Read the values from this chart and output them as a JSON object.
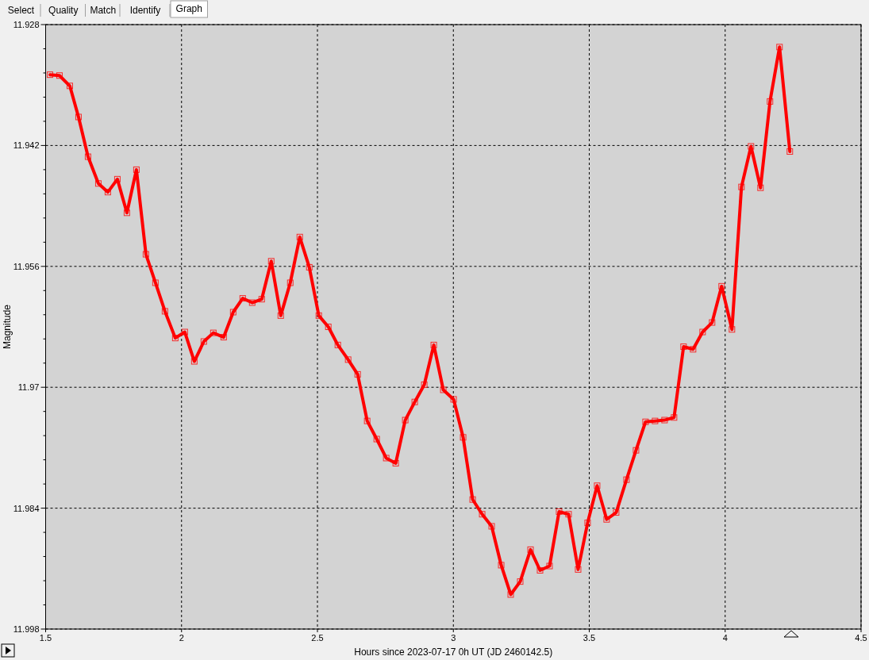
{
  "chart_data": {
    "type": "line",
    "xlabel": "Hours since 2023-07-17 0h UT (JD 2460142.5)",
    "ylabel": "Magnitude",
    "annotations": [
      "Select",
      "Quality",
      "Match",
      "Identify",
      "Graph"
    ],
    "xlim": [
      1.5,
      4.5
    ],
    "xticks": [
      1.5,
      2,
      2.5,
      3,
      3.5,
      4,
      4.5
    ],
    "ylim": [
      11.998,
      11.928
    ],
    "yticks": [
      11.928,
      {
        "value": 11.9308,
        "label": null
      },
      {
        "value": 11.9336,
        "label": null
      },
      {
        "value": 11.9364,
        "label": null
      },
      {
        "value": 11.9392,
        "label": null
      },
      11.942,
      {
        "value": 11.9448,
        "label": null
      },
      {
        "value": 11.9476,
        "label": null
      },
      {
        "value": 11.9504,
        "label": null
      },
      {
        "value": 11.9532,
        "label": null
      },
      11.956,
      {
        "value": 11.9588,
        "label": null
      },
      {
        "value": 11.9616,
        "label": null
      },
      {
        "value": 11.9644,
        "label": null
      },
      {
        "value": 11.9672,
        "label": null
      },
      11.97,
      {
        "value": 11.9728,
        "label": null
      },
      {
        "value": 11.9756,
        "label": null
      },
      {
        "value": 11.9784,
        "label": null
      },
      {
        "value": 11.9812,
        "label": null
      },
      11.984,
      {
        "value": 11.9868,
        "label": null
      },
      {
        "value": 11.9896,
        "label": null
      },
      {
        "value": 11.9924,
        "label": null
      },
      {
        "value": 11.9952,
        "label": null
      },
      11.998
    ],
    "grid": true,
    "marker": "square",
    "line_style": "solid",
    "series": [
      {
        "color": "#ff0000",
        "x": [
          1.516,
          1.551,
          1.589,
          1.621,
          1.656,
          1.694,
          1.729,
          1.764,
          1.799,
          1.834,
          1.869,
          1.904,
          1.939,
          1.977,
          2.012,
          2.047,
          2.082,
          2.117,
          2.155,
          2.19,
          2.225,
          2.26,
          2.295,
          2.33,
          2.365,
          2.4,
          2.435,
          2.47,
          2.505,
          2.54,
          2.575,
          2.613,
          2.648,
          2.683,
          2.718,
          2.753,
          2.788,
          2.823,
          2.858,
          2.893,
          2.928,
          2.963,
          3.001,
          3.036,
          3.071,
          3.106,
          3.141,
          3.176,
          3.211,
          3.246,
          3.284,
          3.319,
          3.354,
          3.389,
          3.424,
          3.459,
          3.494,
          3.529,
          3.564,
          3.599,
          3.637,
          3.672,
          3.707,
          3.742,
          3.777,
          3.812,
          3.847,
          3.882,
          3.917,
          3.952,
          3.987,
          4.025,
          4.06,
          4.095,
          4.13,
          4.165,
          4.2,
          4.238
        ],
        "values": [
          11.9338,
          11.9339,
          11.9351,
          11.9387,
          11.9433,
          11.9464,
          11.9474,
          11.9459,
          11.9498,
          11.9448,
          11.9546,
          11.9579,
          11.9612,
          11.9643,
          11.9636,
          11.967,
          11.9647,
          11.9637,
          11.9642,
          11.9613,
          11.9597,
          11.9602,
          11.9598,
          11.9554,
          11.9617,
          11.9579,
          11.9526,
          11.9561,
          11.9617,
          11.963,
          11.9651,
          11.9668,
          11.9685,
          11.9739,
          11.976,
          11.9782,
          11.9788,
          11.9738,
          11.9717,
          11.9697,
          11.9651,
          11.9703,
          11.9714,
          11.9758,
          11.983,
          11.9847,
          11.9861,
          11.9906,
          11.994,
          11.9925,
          11.9888,
          11.9912,
          11.9907,
          11.9844,
          11.9847,
          11.9911,
          11.9857,
          11.9814,
          11.9853,
          11.9845,
          11.9807,
          11.9773,
          11.974,
          11.9739,
          11.9738,
          11.9735,
          11.9653,
          11.9656,
          11.9636,
          11.9625,
          11.9583,
          11.9633,
          11.9468,
          11.9421,
          11.9469,
          11.9369,
          11.9306,
          11.9427
        ]
      }
    ]
  }
}
